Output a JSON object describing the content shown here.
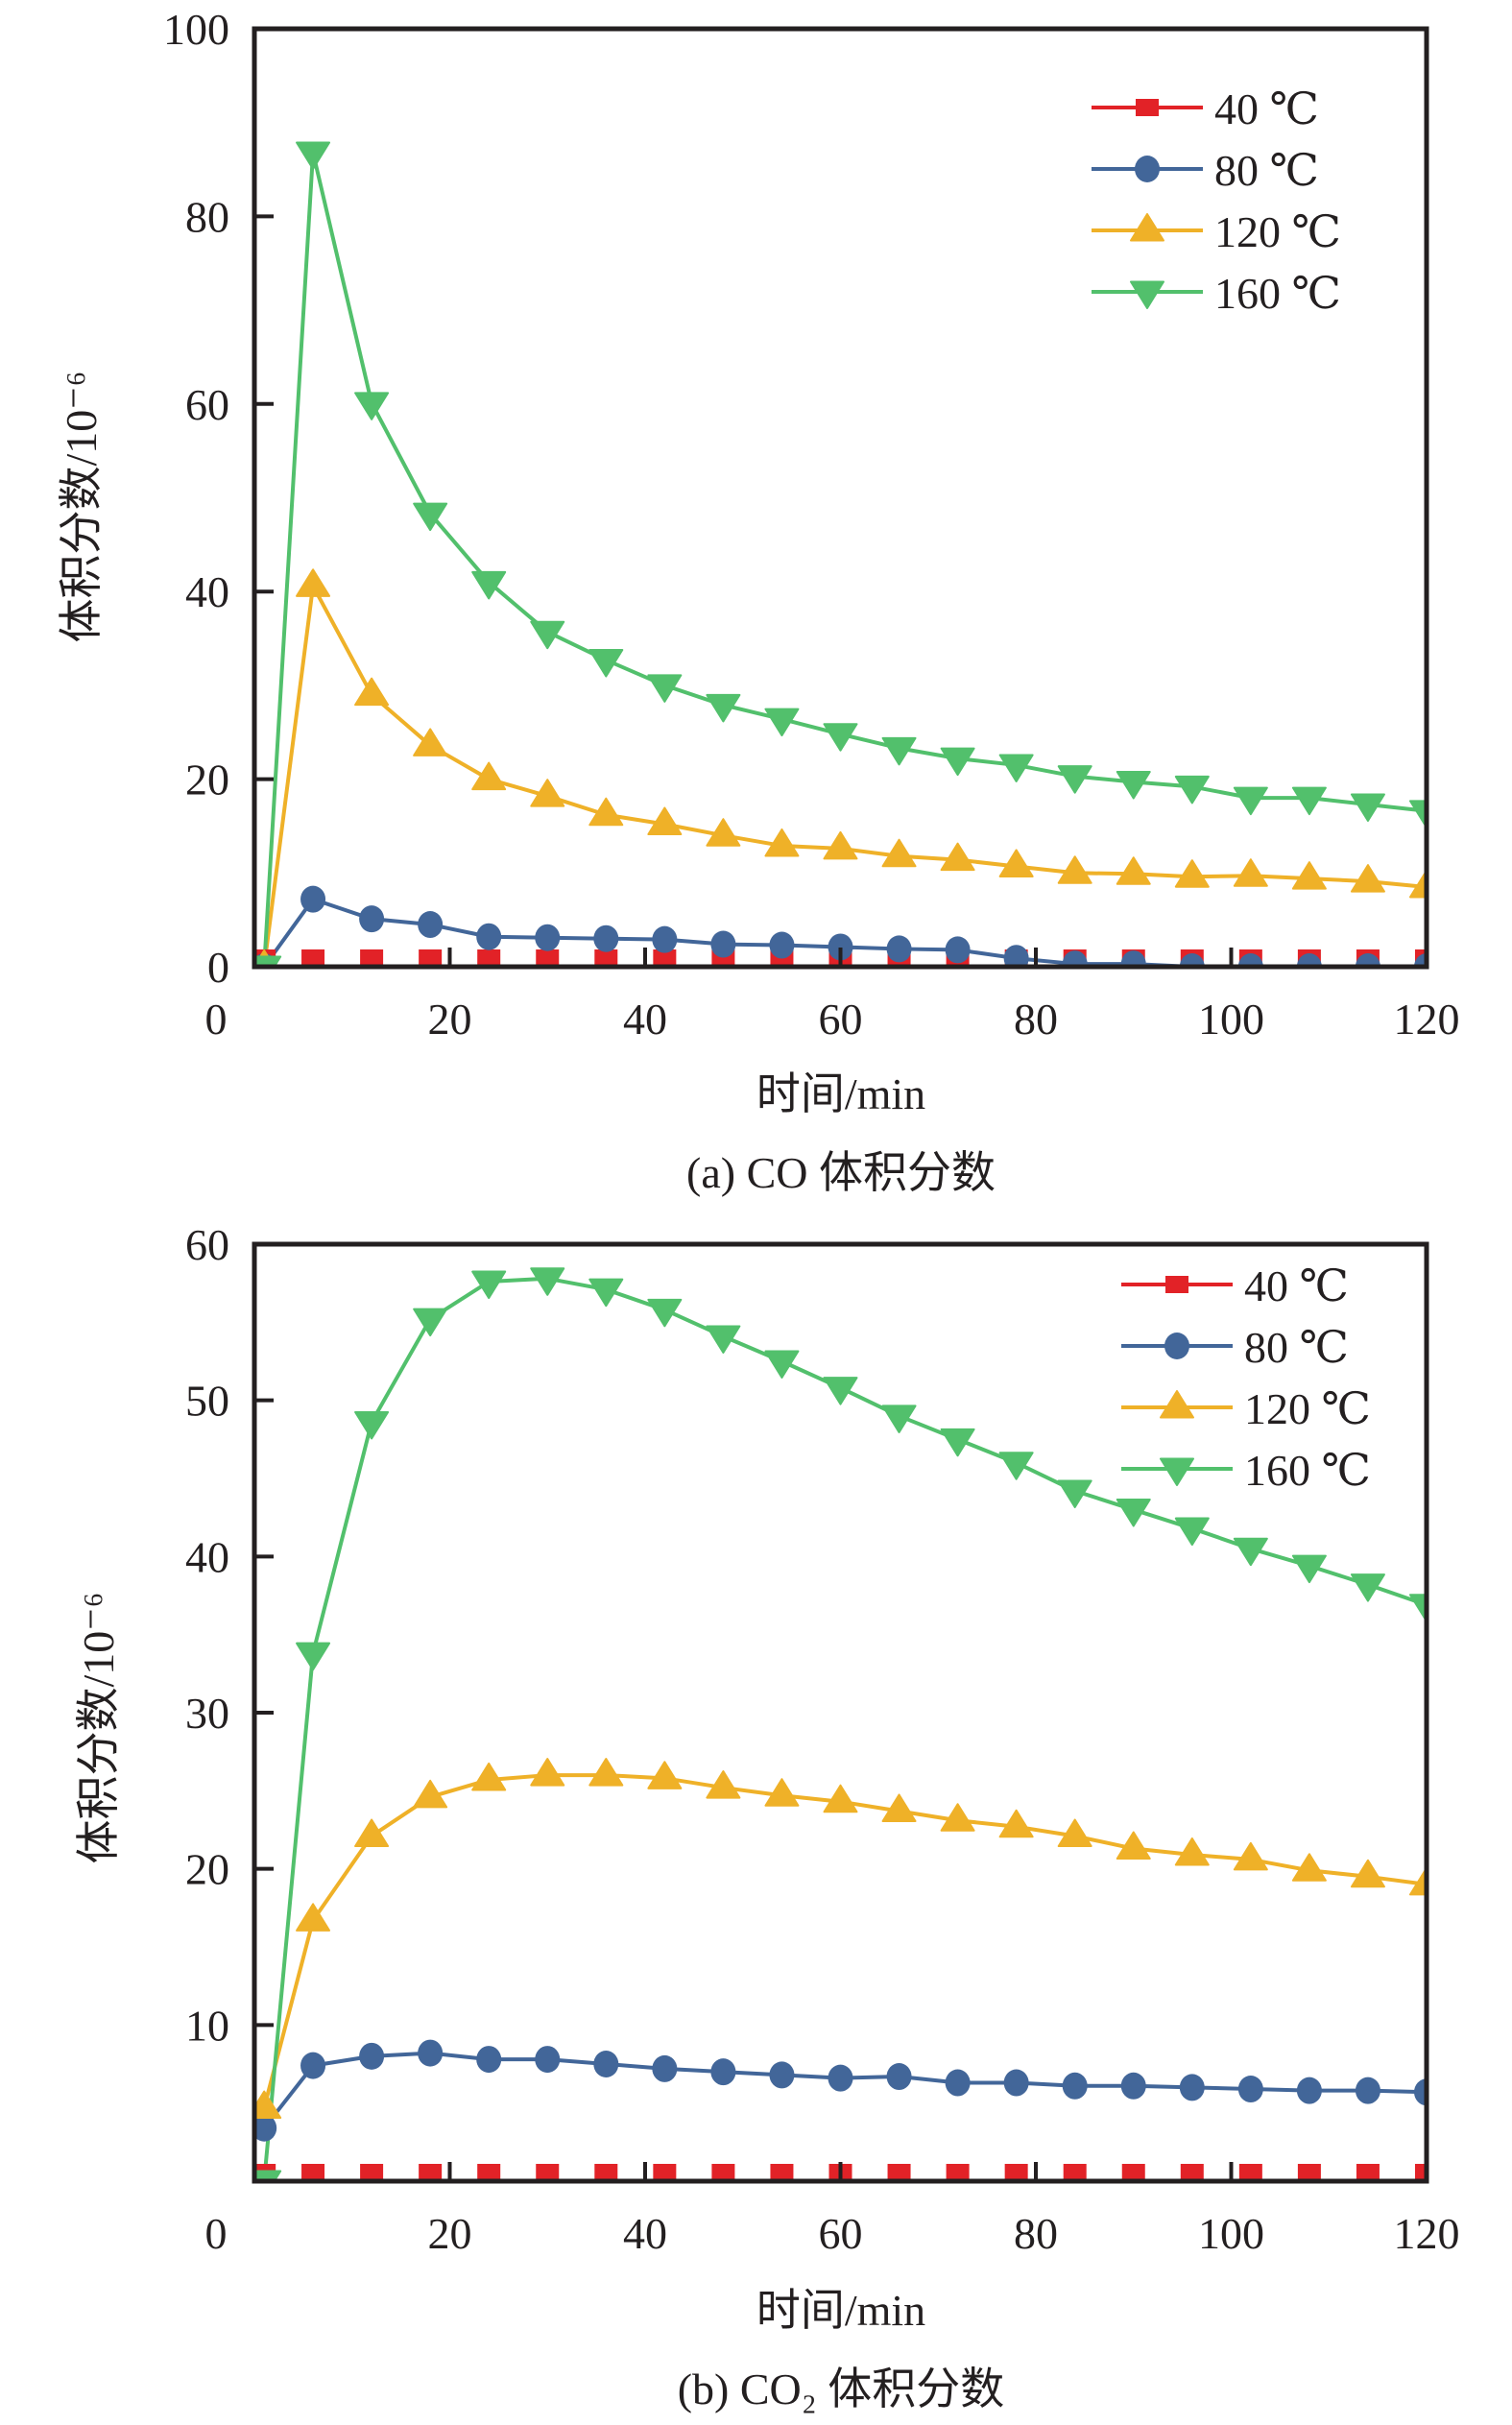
{
  "colors": {
    "40": "#e22227",
    "80": "#426699",
    "120": "#efb128",
    "160": "#52c06c",
    "axis": "#231f20"
  },
  "chart_data": [
    {
      "id": "co",
      "type": "line",
      "caption": "(a) CO 体积分数",
      "xlabel": "时间/min",
      "ylabel": "体积分数/10⁻⁶",
      "xlim": [
        0,
        120
      ],
      "ylim": [
        0,
        100
      ],
      "xticks": [
        0,
        20,
        40,
        60,
        80,
        100,
        120
      ],
      "yticks": [
        0,
        20,
        40,
        60,
        80,
        100
      ],
      "ytick_labels": [
        "0",
        "20",
        "40",
        "60",
        "80",
        "100"
      ],
      "xtick_labels": [
        "0",
        "20",
        "40",
        "60",
        "80",
        "100",
        "120"
      ],
      "grid": false,
      "legend_position": "top-right",
      "x": [
        1,
        6,
        12,
        18,
        24,
        30,
        36,
        42,
        48,
        54,
        60,
        66,
        72,
        78,
        84,
        90,
        96,
        102,
        108,
        114,
        120
      ],
      "series": [
        {
          "name": "40 ℃",
          "key": "40",
          "marker": "square",
          "values": [
            0,
            0,
            0,
            0,
            0,
            0,
            0,
            0,
            0,
            0,
            0,
            0,
            0,
            0,
            0,
            0,
            0,
            0,
            0,
            0,
            0
          ]
        },
        {
          "name": "80 ℃",
          "key": "80",
          "marker": "circle",
          "values": [
            0,
            7.2,
            5.1,
            4.5,
            3.2,
            3.1,
            3.0,
            2.9,
            2.4,
            2.3,
            2.1,
            1.9,
            1.8,
            0.9,
            0.3,
            0.3,
            0,
            0,
            0,
            0,
            0
          ]
        },
        {
          "name": "120 ℃",
          "key": "120",
          "marker": "triangle-up",
          "values": [
            0,
            40.6,
            29.0,
            23.6,
            20.0,
            18.2,
            16.2,
            15.2,
            14.0,
            12.9,
            12.6,
            11.8,
            11.4,
            10.7,
            10.0,
            9.9,
            9.6,
            9.7,
            9.4,
            9.1,
            8.5
          ]
        },
        {
          "name": "160 ℃",
          "key": "160",
          "marker": "triangle-down",
          "values": [
            0,
            86.8,
            60.1,
            48.3,
            41.0,
            35.7,
            32.7,
            30.0,
            27.9,
            26.4,
            24.8,
            23.3,
            22.2,
            21.5,
            20.3,
            19.7,
            19.2,
            18.0,
            18.0,
            17.3,
            16.6
          ]
        }
      ]
    },
    {
      "id": "co2",
      "type": "line",
      "caption": "(b) CO₂ 体积分数",
      "xlabel": "时间/min",
      "ylabel": "体积分数/10⁻⁶",
      "xlim": [
        0,
        120
      ],
      "ylim": [
        0,
        60
      ],
      "xticks": [
        0,
        20,
        40,
        60,
        80,
        100,
        120
      ],
      "yticks": [
        0,
        10,
        20,
        30,
        40,
        50,
        60
      ],
      "ytick_labels": [
        "",
        "10",
        "20",
        "30",
        "40",
        "50",
        "60"
      ],
      "xtick_labels": [
        "0",
        "20",
        "40",
        "60",
        "80",
        "100",
        "120"
      ],
      "grid": false,
      "legend_position": "top-right",
      "x": [
        1,
        6,
        12,
        18,
        24,
        30,
        36,
        42,
        48,
        54,
        60,
        66,
        72,
        78,
        84,
        90,
        96,
        102,
        108,
        114,
        120
      ],
      "series": [
        {
          "name": "40 ℃",
          "key": "40",
          "marker": "square",
          "values": [
            0,
            0,
            0,
            0,
            0,
            0,
            0,
            0,
            0,
            0,
            0,
            0,
            0,
            0,
            0,
            0,
            0,
            0,
            0,
            0,
            0
          ]
        },
        {
          "name": "80 ℃",
          "key": "80",
          "marker": "circle",
          "values": [
            3.4,
            7.4,
            8.0,
            8.2,
            7.8,
            7.8,
            7.5,
            7.2,
            7.0,
            6.8,
            6.6,
            6.7,
            6.3,
            6.3,
            6.1,
            6.1,
            6.0,
            5.9,
            5.8,
            5.8,
            5.7
          ]
        },
        {
          "name": "120 ℃",
          "key": "120",
          "marker": "triangle-up",
          "values": [
            4.7,
            16.7,
            22.1,
            24.6,
            25.7,
            26.0,
            26.0,
            25.8,
            25.2,
            24.7,
            24.3,
            23.7,
            23.1,
            22.7,
            22.1,
            21.3,
            20.9,
            20.6,
            19.9,
            19.5,
            19.0
          ]
        },
        {
          "name": "160 ℃",
          "key": "160",
          "marker": "triangle-down",
          "values": [
            0,
            33.8,
            48.6,
            55.2,
            57.6,
            57.8,
            57.1,
            55.8,
            54.1,
            52.5,
            50.8,
            49.0,
            47.5,
            46.0,
            44.2,
            43.0,
            41.8,
            40.5,
            39.4,
            38.2,
            36.9
          ]
        }
      ]
    }
  ],
  "bottom_left_zero_label": "0"
}
